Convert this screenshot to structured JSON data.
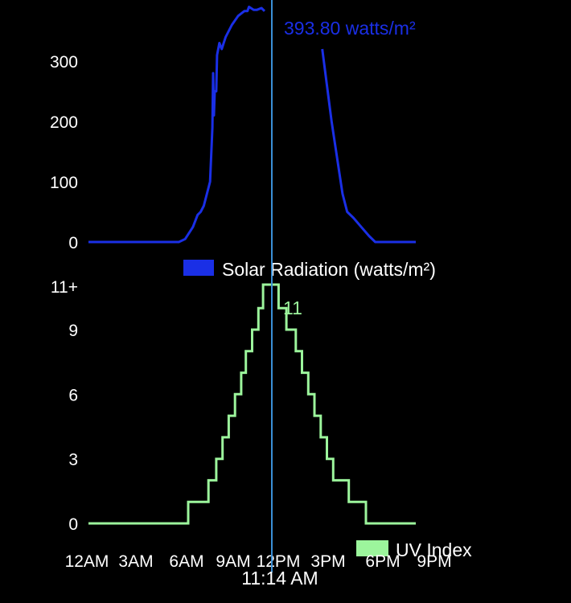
{
  "colors": {
    "background": "#000000",
    "solar": "#1a2fe6",
    "uv": "#9cf59c",
    "cursor": "#3a8fd6",
    "text": "#ffffff"
  },
  "cursor_time_label": "11:14 AM",
  "x_axis": {
    "tick_labels": [
      "12AM",
      "3AM",
      "6AM",
      "9AM",
      "12PM",
      "3PM",
      "6PM",
      "9PM"
    ]
  },
  "chart_data": [
    {
      "type": "line",
      "legend": "Solar Radiation (watts/m²)",
      "cursor_value_label": "393.80 watts/m²",
      "x_unit": "hour of day",
      "xlim": [
        0,
        21
      ],
      "ylim": [
        0,
        390
      ],
      "y_tick_labels": [
        "0",
        "100",
        "200",
        "300"
      ],
      "y_ticks": [
        0,
        100,
        200,
        300
      ],
      "segments": [
        [
          [
            0,
            0
          ],
          [
            5.8,
            0
          ],
          [
            6.2,
            5
          ],
          [
            6.7,
            25
          ],
          [
            7.0,
            45
          ],
          [
            7.2,
            50
          ],
          [
            7.4,
            60
          ],
          [
            7.6,
            80
          ],
          [
            7.8,
            100
          ],
          [
            7.95,
            190
          ],
          [
            8.0,
            280
          ],
          [
            8.05,
            210
          ],
          [
            8.1,
            250
          ],
          [
            8.2,
            250
          ],
          [
            8.25,
            310
          ],
          [
            8.4,
            330
          ],
          [
            8.55,
            320
          ],
          [
            8.8,
            340
          ],
          [
            9.2,
            360
          ],
          [
            9.6,
            375
          ],
          [
            10.0,
            383
          ],
          [
            10.2,
            383
          ],
          [
            10.3,
            390
          ],
          [
            10.6,
            385
          ],
          [
            10.8,
            385
          ],
          [
            11.1,
            388
          ],
          [
            11.3,
            383
          ]
        ],
        [
          [
            15.0,
            320
          ],
          [
            15.6,
            200
          ],
          [
            16.3,
            80
          ],
          [
            16.6,
            50
          ],
          [
            17.0,
            40
          ],
          [
            17.5,
            25
          ],
          [
            18.0,
            10
          ],
          [
            18.4,
            0
          ],
          [
            21,
            0
          ]
        ]
      ]
    },
    {
      "type": "line",
      "legend": "UV Index",
      "cursor_value_label": "11",
      "x_unit": "hour of day",
      "xlim": [
        0,
        21
      ],
      "ylim": [
        0,
        11.8
      ],
      "y_tick_labels": [
        "0",
        "3",
        "6",
        "9",
        "11+"
      ],
      "y_ticks": [
        0,
        3,
        6,
        9,
        11
      ],
      "step_points": [
        [
          0,
          0
        ],
        [
          6.4,
          0
        ],
        [
          6.4,
          1
        ],
        [
          7.7,
          1
        ],
        [
          7.7,
          2
        ],
        [
          8.2,
          2
        ],
        [
          8.2,
          3
        ],
        [
          8.6,
          3
        ],
        [
          8.6,
          4
        ],
        [
          9.0,
          4
        ],
        [
          9.0,
          5
        ],
        [
          9.4,
          5
        ],
        [
          9.4,
          6
        ],
        [
          9.8,
          6
        ],
        [
          9.8,
          7
        ],
        [
          10.1,
          7
        ],
        [
          10.1,
          8
        ],
        [
          10.5,
          8
        ],
        [
          10.5,
          9
        ],
        [
          10.9,
          9
        ],
        [
          10.9,
          10
        ],
        [
          11.2,
          10
        ],
        [
          11.2,
          11
        ],
        [
          12.2,
          11
        ],
        [
          12.2,
          10
        ],
        [
          12.7,
          10
        ],
        [
          12.7,
          9
        ],
        [
          13.3,
          9
        ],
        [
          13.3,
          8
        ],
        [
          13.7,
          8
        ],
        [
          13.7,
          7
        ],
        [
          14.1,
          7
        ],
        [
          14.1,
          6
        ],
        [
          14.5,
          6
        ],
        [
          14.5,
          5
        ],
        [
          14.9,
          5
        ],
        [
          14.9,
          4
        ],
        [
          15.3,
          4
        ],
        [
          15.3,
          3
        ],
        [
          15.7,
          3
        ],
        [
          15.7,
          2
        ],
        [
          16.7,
          2
        ],
        [
          16.7,
          1
        ],
        [
          17.8,
          1
        ],
        [
          17.8,
          0
        ],
        [
          21,
          0
        ]
      ]
    }
  ]
}
